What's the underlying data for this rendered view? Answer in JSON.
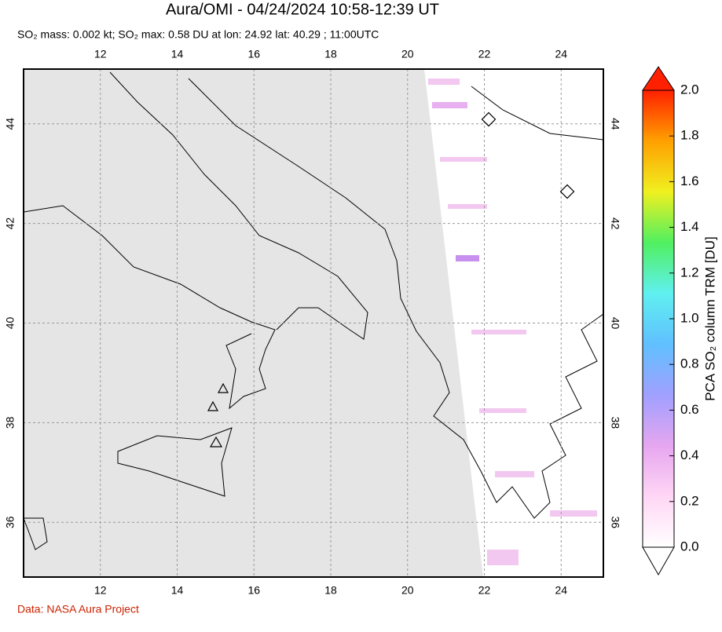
{
  "chart_data": {
    "type": "map",
    "title": "Aura/OMI - 04/24/2024 10:58-12:39 UT",
    "subtitle": "SO₂ mass: 0.002 kt; SO₂ max: 0.58 DU at lon: 24.92 lat: 40.29 ; 11:00UTC",
    "xlim": [
      10,
      25.1
    ],
    "xticks": [
      12,
      14,
      16,
      18,
      20,
      22,
      24
    ],
    "ylim": [
      34.9,
      45.1
    ],
    "yticks": [
      36,
      38,
      40,
      42,
      44
    ],
    "grid": true,
    "colorbar": {
      "label": "PCA SO₂ column TRM [DU]",
      "lim": [
        0,
        2
      ],
      "ticks": [
        {
          "value": 0,
          "label": "0.0"
        },
        0.2,
        0.4,
        0.6,
        0.8,
        {
          "value": 1,
          "label": "1.0"
        },
        1.2,
        1.4,
        1.6,
        1.8,
        {
          "value": 2,
          "label": "2.0"
        }
      ],
      "colors": [
        "#ffffff",
        "#ffd6f5",
        "#e6a6f0",
        "#a0a0ff",
        "#60c0ff",
        "#60f0f0",
        "#50f060",
        "#f0f020",
        "#ffa000",
        "#ff2000"
      ]
    },
    "source": "Data: NASA Aura Project"
  }
}
